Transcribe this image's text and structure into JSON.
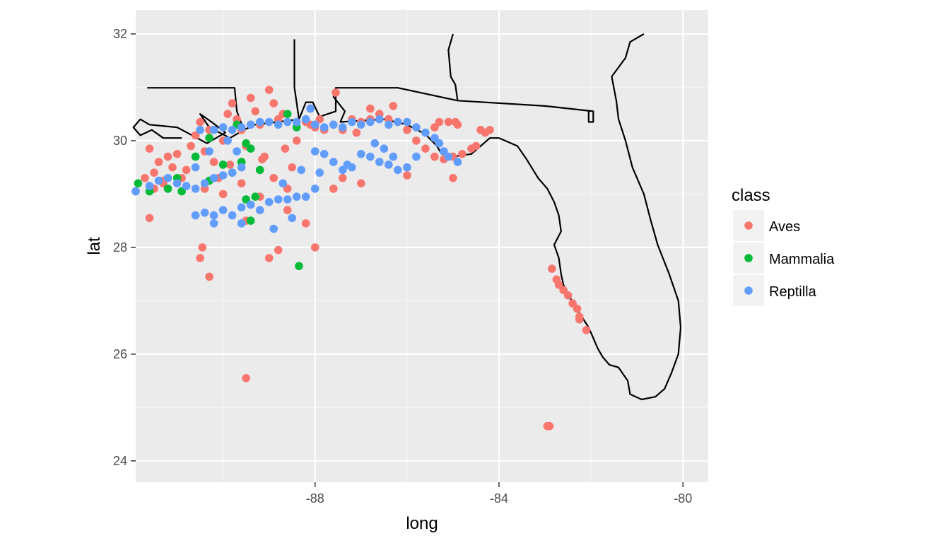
{
  "chart_data": {
    "type": "scatter",
    "xlabel": "long",
    "ylabel": "lat",
    "xlim": [
      -91.9,
      -79.45
    ],
    "ylim": [
      23.6,
      32.45
    ],
    "x_ticks": [
      -88,
      -84,
      -80
    ],
    "x_tick_labels": [
      "-88",
      "-84",
      "-80"
    ],
    "y_ticks": [
      24,
      26,
      28,
      30,
      32
    ],
    "y_tick_labels": [
      "24",
      "26",
      "28",
      "30",
      "32"
    ],
    "grid": true,
    "legend": {
      "title": "class",
      "position": "right"
    },
    "series": [
      {
        "name": "Aves",
        "color": "#F8766D",
        "points": [
          [
            -91.9,
            29.05
          ],
          [
            -91.7,
            29.3
          ],
          [
            -91.6,
            29.85
          ],
          [
            -91.6,
            28.55
          ],
          [
            -91.5,
            29.4
          ],
          [
            -91.4,
            29.6
          ],
          [
            -91.3,
            29.2
          ],
          [
            -91.2,
            29.7
          ],
          [
            -91.1,
            29.5
          ],
          [
            -91.0,
            29.75
          ],
          [
            -90.9,
            29.3
          ],
          [
            -90.8,
            29.45
          ],
          [
            -90.7,
            29.9
          ],
          [
            -90.6,
            30.1
          ],
          [
            -90.5,
            30.35
          ],
          [
            -90.4,
            29.8
          ],
          [
            -90.3,
            30.2
          ],
          [
            -90.2,
            29.6
          ],
          [
            -90.1,
            29.3
          ],
          [
            -90.0,
            30.0
          ],
          [
            -89.9,
            30.5
          ],
          [
            -89.8,
            30.7
          ],
          [
            -89.7,
            30.4
          ],
          [
            -89.6,
            30.2
          ],
          [
            -89.5,
            29.9
          ],
          [
            -89.4,
            30.8
          ],
          [
            -89.3,
            30.55
          ],
          [
            -89.2,
            30.3
          ],
          [
            -89.1,
            29.7
          ],
          [
            -89.0,
            30.95
          ],
          [
            -88.9,
            30.7
          ],
          [
            -88.8,
            30.4
          ],
          [
            -88.7,
            30.5
          ],
          [
            -88.6,
            29.1
          ],
          [
            -88.5,
            29.5
          ],
          [
            -88.4,
            30.0
          ],
          [
            -88.2,
            30.35
          ],
          [
            -88.1,
            30.3
          ],
          [
            -88.0,
            30.25
          ],
          [
            -87.8,
            30.2
          ],
          [
            -87.6,
            30.3
          ],
          [
            -87.4,
            30.2
          ],
          [
            -87.2,
            30.4
          ],
          [
            -87.0,
            30.35
          ],
          [
            -86.8,
            30.4
          ],
          [
            -86.6,
            30.5
          ],
          [
            -86.4,
            30.4
          ],
          [
            -86.2,
            30.35
          ],
          [
            -86.0,
            30.2
          ],
          [
            -85.8,
            30.0
          ],
          [
            -85.6,
            29.85
          ],
          [
            -85.4,
            29.7
          ],
          [
            -85.2,
            29.65
          ],
          [
            -85.0,
            29.7
          ],
          [
            -84.8,
            29.75
          ],
          [
            -84.6,
            29.85
          ],
          [
            -84.5,
            29.9
          ],
          [
            -84.4,
            30.2
          ],
          [
            -84.3,
            30.15
          ],
          [
            -84.2,
            30.2
          ],
          [
            -90.45,
            28.0
          ],
          [
            -90.5,
            27.8
          ],
          [
            -90.3,
            27.45
          ],
          [
            -89.5,
            25.55
          ],
          [
            -88.2,
            28.45
          ],
          [
            -88.0,
            28.0
          ],
          [
            -88.8,
            27.95
          ],
          [
            -89.0,
            27.8
          ],
          [
            -87.0,
            29.2
          ],
          [
            -86.0,
            29.35
          ],
          [
            -85.0,
            29.3
          ],
          [
            -84.95,
            30.35
          ],
          [
            -87.6,
            29.1
          ],
          [
            -87.4,
            29.3
          ],
          [
            -88.6,
            28.7
          ],
          [
            -89.5,
            28.5
          ],
          [
            -90.0,
            29.0
          ],
          [
            -89.2,
            28.95
          ],
          [
            -88.9,
            29.3
          ],
          [
            -89.6,
            29.2
          ],
          [
            -90.4,
            29.1
          ],
          [
            -91.3,
            29.25
          ],
          [
            -91.5,
            29.1
          ],
          [
            -87.55,
            30.9
          ],
          [
            -88.1,
            30.6
          ],
          [
            -86.3,
            30.65
          ],
          [
            -85.4,
            30.25
          ],
          [
            -85.1,
            30.35
          ],
          [
            -82.85,
            27.6
          ],
          [
            -82.75,
            27.4
          ],
          [
            -82.7,
            27.3
          ],
          [
            -82.6,
            27.2
          ],
          [
            -82.5,
            27.1
          ],
          [
            -82.4,
            26.95
          ],
          [
            -82.3,
            26.85
          ],
          [
            -82.25,
            26.7
          ],
          [
            -82.25,
            26.65
          ],
          [
            -82.1,
            26.45
          ],
          [
            -82.95,
            24.65
          ],
          [
            -82.9,
            24.65
          ],
          [
            -85.3,
            30.35
          ],
          [
            -84.9,
            30.3
          ],
          [
            -86.8,
            30.6
          ],
          [
            -87.9,
            30.4
          ],
          [
            -87.1,
            30.15
          ],
          [
            -89.85,
            29.55
          ],
          [
            -89.15,
            29.65
          ],
          [
            -88.65,
            29.85
          ]
        ]
      },
      {
        "name": "Mammalia",
        "color": "#00BA38",
        "points": [
          [
            -91.85,
            29.2
          ],
          [
            -91.6,
            29.05
          ],
          [
            -91.2,
            29.1
          ],
          [
            -90.9,
            29.05
          ],
          [
            -90.6,
            29.7
          ],
          [
            -90.3,
            30.05
          ],
          [
            -90.0,
            29.55
          ],
          [
            -89.8,
            29.4
          ],
          [
            -89.6,
            29.6
          ],
          [
            -89.5,
            29.95
          ],
          [
            -89.4,
            29.85
          ],
          [
            -89.5,
            28.9
          ],
          [
            -89.3,
            28.95
          ],
          [
            -89.4,
            28.5
          ],
          [
            -89.6,
            29.6
          ],
          [
            -88.6,
            30.5
          ],
          [
            -88.4,
            30.25
          ],
          [
            -88.35,
            27.65
          ],
          [
            -90.3,
            29.25
          ],
          [
            -91.0,
            29.3
          ],
          [
            -89.7,
            30.3
          ],
          [
            -89.2,
            29.45
          ]
        ]
      },
      {
        "name": "Reptilla",
        "color": "#619CFF",
        "points": [
          [
            -91.9,
            29.05
          ],
          [
            -91.6,
            29.15
          ],
          [
            -91.4,
            29.25
          ],
          [
            -91.2,
            29.3
          ],
          [
            -91.0,
            29.2
          ],
          [
            -90.8,
            29.15
          ],
          [
            -90.6,
            29.1
          ],
          [
            -90.4,
            29.2
          ],
          [
            -90.2,
            29.3
          ],
          [
            -90.0,
            29.35
          ],
          [
            -89.8,
            29.4
          ],
          [
            -89.6,
            29.5
          ],
          [
            -90.5,
            30.2
          ],
          [
            -90.2,
            30.2
          ],
          [
            -90.0,
            30.25
          ],
          [
            -89.8,
            30.2
          ],
          [
            -89.6,
            30.25
          ],
          [
            -89.4,
            30.3
          ],
          [
            -89.2,
            30.35
          ],
          [
            -89.0,
            30.35
          ],
          [
            -88.8,
            30.3
          ],
          [
            -88.6,
            30.35
          ],
          [
            -88.4,
            30.35
          ],
          [
            -88.2,
            30.4
          ],
          [
            -88.1,
            30.6
          ],
          [
            -88.0,
            30.3
          ],
          [
            -87.8,
            30.25
          ],
          [
            -87.6,
            30.3
          ],
          [
            -87.4,
            30.25
          ],
          [
            -87.2,
            30.35
          ],
          [
            -87.0,
            30.3
          ],
          [
            -86.8,
            30.35
          ],
          [
            -86.6,
            30.4
          ],
          [
            -86.4,
            30.3
          ],
          [
            -86.2,
            30.35
          ],
          [
            -86.0,
            30.35
          ],
          [
            -85.8,
            30.25
          ],
          [
            -85.6,
            30.15
          ],
          [
            -85.4,
            30.05
          ],
          [
            -85.3,
            29.95
          ],
          [
            -85.2,
            29.8
          ],
          [
            -85.1,
            29.7
          ],
          [
            -84.9,
            29.6
          ],
          [
            -90.6,
            28.6
          ],
          [
            -90.4,
            28.65
          ],
          [
            -90.2,
            28.6
          ],
          [
            -90.0,
            28.7
          ],
          [
            -89.8,
            28.6
          ],
          [
            -89.6,
            28.75
          ],
          [
            -89.4,
            28.8
          ],
          [
            -89.2,
            28.7
          ],
          [
            -89.0,
            28.85
          ],
          [
            -88.8,
            28.9
          ],
          [
            -88.6,
            28.9
          ],
          [
            -88.4,
            28.95
          ],
          [
            -88.2,
            28.95
          ],
          [
            -88.0,
            29.1
          ],
          [
            -88.5,
            28.55
          ],
          [
            -88.9,
            28.35
          ],
          [
            -89.6,
            28.45
          ],
          [
            -90.2,
            28.45
          ],
          [
            -88.7,
            29.2
          ],
          [
            -88.0,
            29.8
          ],
          [
            -87.8,
            29.75
          ],
          [
            -87.6,
            29.6
          ],
          [
            -87.4,
            29.45
          ],
          [
            -87.2,
            29.5
          ],
          [
            -87.0,
            29.75
          ],
          [
            -86.8,
            29.7
          ],
          [
            -86.6,
            29.6
          ],
          [
            -86.4,
            29.55
          ],
          [
            -86.2,
            29.45
          ],
          [
            -86.0,
            29.5
          ],
          [
            -85.8,
            29.7
          ],
          [
            -87.9,
            29.4
          ],
          [
            -87.3,
            29.55
          ],
          [
            -86.7,
            29.95
          ],
          [
            -86.5,
            29.85
          ],
          [
            -86.3,
            29.7
          ],
          [
            -88.3,
            29.45
          ],
          [
            -89.9,
            30.0
          ],
          [
            -90.3,
            29.8
          ],
          [
            -90.6,
            29.5
          ],
          [
            -89.7,
            29.8
          ]
        ]
      }
    ]
  },
  "map_outline": {
    "color": "#000000",
    "paths": [
      [
        [
          -85.0,
          32.0
        ],
        [
          -85.1,
          31.7
        ],
        [
          -85.05,
          31.2
        ],
        [
          -84.95,
          31.05
        ],
        [
          -84.9,
          30.75
        ],
        [
          -86.2,
          30.99
        ],
        [
          -87.55,
          30.99
        ],
        [
          -87.6,
          30.82
        ],
        [
          -87.35,
          30.55
        ],
        [
          -87.45,
          30.35
        ],
        [
          -86.5,
          30.4
        ],
        [
          -86.0,
          30.3
        ],
        [
          -85.6,
          30.12
        ],
        [
          -85.35,
          29.9
        ],
        [
          -85.25,
          29.75
        ],
        [
          -85.0,
          29.7
        ],
        [
          -84.6,
          29.75
        ],
        [
          -84.4,
          29.9
        ],
        [
          -84.2,
          30.05
        ],
        [
          -84.0,
          30.05
        ],
        [
          -83.6,
          29.9
        ],
        [
          -83.4,
          29.65
        ],
        [
          -83.15,
          29.3
        ],
        [
          -82.95,
          29.1
        ],
        [
          -82.8,
          28.85
        ],
        [
          -82.7,
          28.6
        ],
        [
          -82.65,
          28.3
        ],
        [
          -82.8,
          28.05
        ],
        [
          -82.7,
          27.8
        ],
        [
          -82.65,
          27.5
        ],
        [
          -82.6,
          27.3
        ],
        [
          -82.45,
          27.05
        ],
        [
          -82.35,
          26.9
        ],
        [
          -82.2,
          26.7
        ],
        [
          -82.05,
          26.5
        ],
        [
          -81.85,
          26.1
        ],
        [
          -81.75,
          25.95
        ],
        [
          -81.6,
          25.8
        ],
        [
          -81.4,
          25.75
        ],
        [
          -81.2,
          25.5
        ],
        [
          -81.15,
          25.25
        ],
        [
          -80.9,
          25.15
        ],
        [
          -80.6,
          25.2
        ],
        [
          -80.4,
          25.35
        ],
        [
          -80.25,
          25.65
        ],
        [
          -80.1,
          26.0
        ],
        [
          -80.05,
          26.5
        ],
        [
          -80.1,
          27.0
        ],
        [
          -80.3,
          27.5
        ],
        [
          -80.55,
          28.05
        ],
        [
          -80.7,
          28.5
        ],
        [
          -80.85,
          29.0
        ],
        [
          -81.1,
          29.5
        ],
        [
          -81.25,
          30.0
        ],
        [
          -81.4,
          30.4
        ],
        [
          -81.45,
          30.75
        ],
        [
          -81.55,
          31.2
        ],
        [
          -81.25,
          31.55
        ],
        [
          -81.15,
          31.85
        ],
        [
          -80.85,
          32.0
        ]
      ],
      [
        [
          -84.9,
          30.75
        ],
        [
          -83.0,
          30.65
        ],
        [
          -81.95,
          30.55
        ],
        [
          -81.95,
          30.35
        ],
        [
          -82.05,
          30.35
        ],
        [
          -82.05,
          30.55
        ]
      ],
      [
        [
          -87.55,
          30.99
        ],
        [
          -87.55,
          30.55
        ],
        [
          -87.9,
          30.45
        ],
        [
          -88.05,
          30.72
        ],
        [
          -88.2,
          30.72
        ],
        [
          -88.35,
          30.4
        ]
      ],
      [
        [
          -88.35,
          30.4
        ],
        [
          -88.45,
          31.0
        ],
        [
          -88.45,
          31.9
        ]
      ],
      [
        [
          -88.35,
          30.4
        ],
        [
          -89.3,
          30.3
        ],
        [
          -89.55,
          30.2
        ],
        [
          -89.7,
          30.55
        ],
        [
          -89.75,
          30.99
        ],
        [
          -91.65,
          30.99
        ]
      ],
      [
        [
          -89.55,
          30.2
        ],
        [
          -89.85,
          30.05
        ],
        [
          -90.3,
          30.25
        ],
        [
          -90.5,
          30.5
        ],
        [
          -90.25,
          30.35
        ],
        [
          -89.95,
          30.15
        ],
        [
          -90.35,
          29.95
        ],
        [
          -91.0,
          30.25
        ],
        [
          -91.6,
          30.3
        ],
        [
          -91.8,
          30.4
        ],
        [
          -91.95,
          30.25
        ],
        [
          -91.8,
          30.1
        ],
        [
          -91.55,
          30.2
        ],
        [
          -91.3,
          30.05
        ],
        [
          -90.9,
          30.05
        ]
      ]
    ]
  }
}
